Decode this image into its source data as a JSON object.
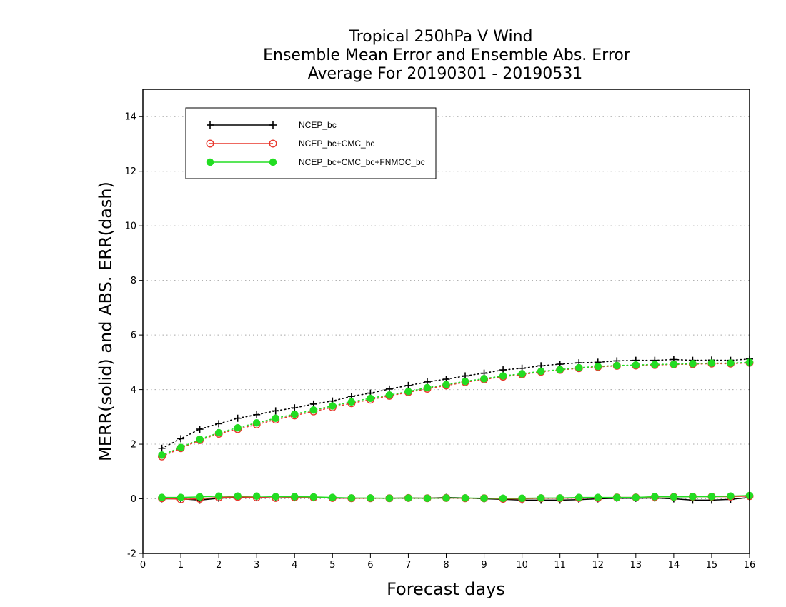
{
  "chart_data": {
    "type": "line",
    "title_lines": [
      "Tropical 250hPa V Wind",
      "Ensemble Mean Error and Ensemble Abs. Error",
      "Average For 20190301 - 20190531"
    ],
    "xlabel": "Forecast days",
    "ylabel": "MERR(solid) and ABS. ERR(dash)",
    "xlim": [
      0,
      16
    ],
    "ylim": [
      -2,
      15
    ],
    "x_ticks": [
      "0",
      "1",
      "2",
      "3",
      "4",
      "5",
      "6",
      "7",
      "8",
      "9",
      "10",
      "11",
      "12",
      "13",
      "14",
      "15",
      "16"
    ],
    "y_ticks": [
      "-2",
      "0",
      "2",
      "4",
      "6",
      "8",
      "10",
      "12",
      "14"
    ],
    "y_grid": "dotted",
    "legend_position": "top-left",
    "x": [
      0.5,
      1,
      1.5,
      2,
      2.5,
      3,
      3.5,
      4,
      4.5,
      5,
      5.5,
      6,
      6.5,
      7,
      7.5,
      8,
      8.5,
      9,
      9.5,
      10,
      10.5,
      11,
      11.5,
      12,
      12.5,
      13,
      13.5,
      14,
      14.5,
      15,
      15.5,
      16
    ],
    "series": [
      {
        "name": "NCEP_bc",
        "color": "#000000",
        "marker": "plus",
        "merr": [
          0.0,
          0.0,
          -0.05,
          0.02,
          0.05,
          0.05,
          0.03,
          0.05,
          0.05,
          0.03,
          0.02,
          0.02,
          0.02,
          0.03,
          0.02,
          0.05,
          0.03,
          0.0,
          -0.02,
          -0.05,
          -0.05,
          -0.05,
          -0.03,
          0.0,
          0.02,
          0.02,
          0.03,
          0.0,
          -0.05,
          -0.05,
          -0.02,
          0.05
        ],
        "abs_err": [
          1.85,
          2.2,
          2.55,
          2.75,
          2.95,
          3.08,
          3.22,
          3.33,
          3.47,
          3.58,
          3.75,
          3.87,
          4.02,
          4.15,
          4.28,
          4.38,
          4.5,
          4.6,
          4.72,
          4.78,
          4.87,
          4.93,
          4.98,
          5.0,
          5.05,
          5.07,
          5.07,
          5.1,
          5.07,
          5.08,
          5.07,
          5.12
        ]
      },
      {
        "name": "NCEP_bc+CMC_bc",
        "color": "#e8372c",
        "marker": "open-circle",
        "merr": [
          0.02,
          -0.02,
          0.0,
          0.05,
          0.07,
          0.05,
          0.03,
          0.05,
          0.05,
          0.03,
          0.02,
          0.02,
          0.02,
          0.03,
          0.02,
          0.03,
          0.02,
          0.02,
          0.0,
          0.0,
          0.02,
          0.02,
          0.03,
          0.03,
          0.05,
          0.05,
          0.07,
          0.07,
          0.08,
          0.08,
          0.08,
          0.1
        ],
        "abs_err": [
          1.55,
          1.85,
          2.15,
          2.38,
          2.55,
          2.72,
          2.9,
          3.05,
          3.2,
          3.35,
          3.5,
          3.63,
          3.77,
          3.9,
          4.03,
          4.15,
          4.27,
          4.37,
          4.47,
          4.55,
          4.65,
          4.72,
          4.78,
          4.83,
          4.87,
          4.88,
          4.9,
          4.92,
          4.93,
          4.95,
          4.95,
          4.98
        ]
      },
      {
        "name": "NCEP_bc+CMC_bc+FNMOC_bc",
        "color": "#22dd22",
        "marker": "filled-circle",
        "merr": [
          0.05,
          0.05,
          0.07,
          0.1,
          0.1,
          0.1,
          0.08,
          0.08,
          0.07,
          0.05,
          0.03,
          0.03,
          0.02,
          0.03,
          0.02,
          0.03,
          0.03,
          0.02,
          0.02,
          0.02,
          0.03,
          0.03,
          0.05,
          0.05,
          0.05,
          0.05,
          0.08,
          0.07,
          0.08,
          0.08,
          0.1,
          0.12
        ],
        "abs_err": [
          1.6,
          1.88,
          2.18,
          2.42,
          2.6,
          2.78,
          2.95,
          3.1,
          3.25,
          3.4,
          3.55,
          3.68,
          3.8,
          3.93,
          4.07,
          4.18,
          4.3,
          4.4,
          4.5,
          4.58,
          4.67,
          4.73,
          4.8,
          4.85,
          4.88,
          4.9,
          4.92,
          4.93,
          4.95,
          4.97,
          4.97,
          5.0
        ]
      }
    ]
  }
}
